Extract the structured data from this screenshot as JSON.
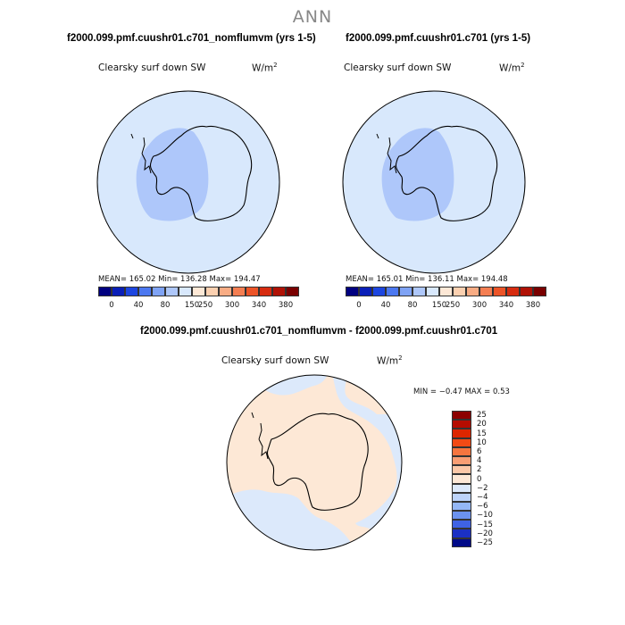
{
  "season": "ANN",
  "panels": [
    {
      "title": "f2000.099.pmf.cuushr01.c701_nomflumvm (yrs 1-5)",
      "field": "Clearsky surf down SW",
      "units": "W/m",
      "units_exp": "2",
      "stats": "MEAN= 165.02   Min= 136.28   Max= 194.47",
      "colorbar_labels": [
        "0",
        "40",
        "80",
        "150",
        "250",
        "300",
        "340",
        "380"
      ]
    },
    {
      "title": "f2000.099.pmf.cuushr01.c701 (yrs 1-5)",
      "field": "Clearsky surf down SW",
      "units": "W/m",
      "units_exp": "2",
      "stats": "MEAN= 165.01   Min= 136.11   Max= 194.48",
      "colorbar_labels": [
        "0",
        "40",
        "80",
        "150",
        "250",
        "300",
        "340",
        "380"
      ]
    }
  ],
  "diff": {
    "title": "f2000.099.pmf.cuushr01.c701_nomflumvm - f2000.099.pmf.cuushr01.c701",
    "field": "Clearsky surf down SW",
    "units": "W/m",
    "units_exp": "2",
    "minmax": "MIN =   −0.47  MAX =    0.53",
    "colorbar_labels": [
      "25",
      "20",
      "15",
      "10",
      "6",
      "4",
      "2",
      "0",
      "−2",
      "−4",
      "−6",
      "−10",
      "−15",
      "−20",
      "−25"
    ]
  },
  "colors": {
    "abs_scale": [
      "#000080",
      "#0a1fb8",
      "#1d46e0",
      "#4c78f0",
      "#7fa3f5",
      "#aec7fa",
      "#d8e8fc",
      "#fde8d6",
      "#fbd0b0",
      "#f8ac84",
      "#f47e52",
      "#ec5428",
      "#d72c10",
      "#b01206",
      "#7a0000"
    ],
    "diff_scale": [
      "#8c0000",
      "#b50c00",
      "#dd2600",
      "#f24a15",
      "#f6753f",
      "#f89e74",
      "#fbc8a8",
      "#fde8d6",
      "#dce9fb",
      "#bcd3fa",
      "#94b7f6",
      "#6b92ef",
      "#3f62e4",
      "#1b30c4",
      "#000a88"
    ],
    "ocean_abs": "#d8e8fc",
    "interior_abs": "#aec7fa",
    "diff_neutral_pos": "#fde8d6",
    "diff_neutral_neg": "#dce9fb"
  }
}
